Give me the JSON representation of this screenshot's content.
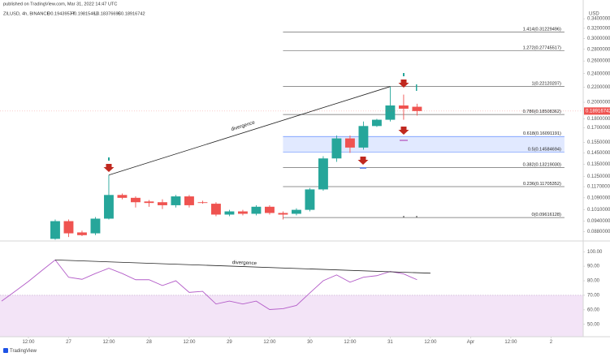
{
  "header": {
    "published": "published on TradingView.com, Mar 31, 2022 14:47 UTC",
    "symbol": "ZILUSD, 4h, BINANCE",
    "ohlc": [
      "O0.19439577",
      "H0.19815463",
      "L0.18376695",
      "C0.18916742"
    ]
  },
  "footer": {
    "brand": "TradingView"
  },
  "chart_data": [
    {
      "type": "candlestick",
      "currency": "USD",
      "log_scale": true,
      "grid": false,
      "up_color": "#26a69a",
      "down_color": "#ef5350",
      "xlim": [
        -0.12,
        43.4
      ],
      "ylim": [
        0.0833,
        0.383
      ],
      "xticks": [
        {
          "value": 2,
          "label": "12:00"
        },
        {
          "value": 5,
          "label": "27"
        },
        {
          "value": 8,
          "label": "12:00"
        },
        {
          "value": 11,
          "label": "28"
        },
        {
          "value": 14,
          "label": "12:00"
        },
        {
          "value": 17,
          "label": "29"
        },
        {
          "value": 20,
          "label": "12:00"
        },
        {
          "value": 23,
          "label": "30"
        },
        {
          "value": 26,
          "label": "12:00"
        },
        {
          "value": 29,
          "label": "31"
        },
        {
          "value": 32,
          "label": "12:00"
        },
        {
          "value": 35,
          "label": "Apr"
        },
        {
          "value": 38,
          "label": "12:00"
        },
        {
          "value": 41,
          "label": "2"
        }
      ],
      "yticks": [
        {
          "value": 0.34,
          "label": "0.34000000"
        },
        {
          "value": 0.32,
          "label": "0.32000000"
        },
        {
          "value": 0.3,
          "label": "0.30000000"
        },
        {
          "value": 0.28,
          "label": "0.28000000"
        },
        {
          "value": 0.26,
          "label": "0.26000000"
        },
        {
          "value": 0.24,
          "label": "0.24000000"
        },
        {
          "value": 0.22,
          "label": "0.22000000"
        },
        {
          "value": 0.2,
          "label": "0.20000000"
        },
        {
          "value": 0.18,
          "label": "0.18000000"
        },
        {
          "value": 0.17,
          "label": "0.17000000"
        },
        {
          "value": 0.155,
          "label": "0.15500000"
        },
        {
          "value": 0.145,
          "label": "0.14500000"
        },
        {
          "value": 0.135,
          "label": "0.13500000"
        },
        {
          "value": 0.125,
          "label": "0.12500000"
        },
        {
          "value": 0.117,
          "label": "0.11700000"
        },
        {
          "value": 0.109,
          "label": "0.10900000"
        },
        {
          "value": 0.101,
          "label": "0.10100000"
        },
        {
          "value": 0.094,
          "label": "0.09400000"
        },
        {
          "value": 0.088,
          "label": "0.08800000"
        }
      ],
      "open": [
        null,
        null,
        null,
        null,
        0.084,
        0.094,
        0.0875,
        0.087,
        0.0955,
        0.111,
        0.109,
        0.1065,
        0.106,
        0.104,
        0.11,
        0.106,
        0.105,
        0.098,
        0.1,
        0.0985,
        0.103,
        0.099,
        0.0985,
        0.101,
        0.115,
        0.14,
        0.159,
        0.15,
        0.172,
        0.179,
        0.196,
        0.19439577
      ],
      "high": [
        null,
        null,
        null,
        null,
        0.095,
        0.095,
        0.0885,
        0.0965,
        0.126,
        0.112,
        0.11,
        0.1075,
        0.108,
        0.111,
        0.111,
        0.107,
        0.106,
        0.101,
        0.101,
        0.104,
        0.104,
        0.1,
        0.102,
        0.116,
        0.142,
        0.162,
        0.162,
        0.177,
        0.18,
        0.221,
        0.21,
        0.19815463
      ],
      "low": [
        null,
        null,
        null,
        null,
        0.0835,
        0.085,
        0.0855,
        0.086,
        0.095,
        0.108,
        0.1025,
        0.103,
        0.1015,
        0.1025,
        0.1025,
        0.105,
        0.097,
        0.097,
        0.0975,
        0.0975,
        0.098,
        0.095,
        0.0975,
        0.1,
        0.114,
        0.137,
        0.145,
        0.148,
        0.171,
        0.177,
        0.179,
        0.18376695
      ],
      "close": [
        null,
        null,
        null,
        null,
        0.094,
        0.087,
        0.086,
        0.0955,
        0.111,
        0.109,
        0.106,
        0.1055,
        0.104,
        0.11,
        0.104,
        0.1055,
        0.098,
        0.1,
        0.0985,
        0.103,
        0.099,
        0.098,
        0.101,
        0.115,
        0.14,
        0.159,
        0.15,
        0.172,
        0.179,
        0.196,
        0.192,
        0.18916742
      ],
      "last_price": {
        "value": 0.18916742,
        "label": "0.18916742"
      },
      "fib_span": [
        21,
        42
      ],
      "fib_levels": [
        {
          "value": 0.31229496,
          "label": "1.414(0.31229496)",
          "shaded": false
        },
        {
          "value": 0.27745517,
          "label": "1.272(0.27745517)",
          "shaded": false
        },
        {
          "value": 0.22120207,
          "label": "1(0.22120207)",
          "shaded": false
        },
        {
          "value": 0.18508362,
          "label": "0.786(0.18508362)",
          "shaded": false
        },
        {
          "value": 0.16091191,
          "label": "0.618(0.16091191)",
          "shaded": true
        },
        {
          "value": 0.14584694,
          "label": "0.5(0.14584694)",
          "shaded": true
        },
        {
          "value": 0.1321903,
          "label": "0.382(0.13219030)",
          "shaded": false
        },
        {
          "value": 0.11705352,
          "label": "0.236(0.11705352)",
          "shaded": false
        },
        {
          "value": 0.09616128,
          "label": "0(0.09616128)",
          "shaded": false
        }
      ],
      "band_color": "#2962ff",
      "trendlines": [
        {
          "label": "divergence",
          "from": [
            8,
            0.126
          ],
          "to": [
            29,
            0.221
          ]
        }
      ]
    },
    {
      "type": "line",
      "color": "#b35cc8",
      "band_color": "#f3e4f7",
      "shade_below": 70,
      "xlim": [
        -0.12,
        43.4
      ],
      "ylim": [
        41.5,
        106.8
      ],
      "yticks": [
        {
          "value": 100,
          "label": "100.00"
        },
        {
          "value": 90,
          "label": "90.00"
        },
        {
          "value": 80,
          "label": "80.00"
        },
        {
          "value": 70,
          "label": "70.00"
        },
        {
          "value": 60,
          "label": "60.00"
        },
        {
          "value": 50,
          "label": "50.00"
        }
      ],
      "values": [
        66,
        72.7,
        79.5,
        87,
        94.3,
        82.4,
        81,
        85,
        88.6,
        85,
        80.7,
        80.7,
        76.7,
        80,
        72,
        72.7,
        64,
        66,
        64,
        66,
        60.2,
        60.8,
        63,
        71.6,
        80,
        84,
        79,
        82.4,
        83.5,
        86.4,
        84.7,
        80.7
      ],
      "trendlines": [
        {
          "label": "divergence",
          "from": [
            4,
            94.3
          ],
          "to": [
            32,
            85.2
          ]
        }
      ]
    }
  ]
}
